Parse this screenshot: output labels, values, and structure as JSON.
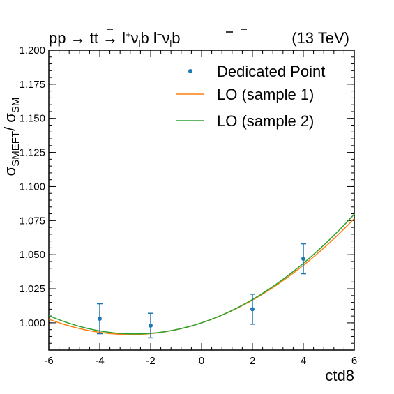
{
  "chart_data": {
    "type": "line",
    "title_process": {
      "parts": [
        "pp → t",
        "t",
        " → l",
        "+",
        "ν",
        "l",
        "b  l",
        "−",
        "ν",
        "l",
        "b",
        ""
      ]
    },
    "title_energy": "(13 TeV)",
    "xlabel": "ctd8",
    "ylabel_parts": [
      "σ",
      "SMEFT",
      "/ σ",
      "SM"
    ],
    "xlim": [
      -6,
      6
    ],
    "ylim": [
      0.98,
      1.2
    ],
    "x_ticks": [
      -6,
      -4,
      -2,
      0,
      2,
      4,
      6
    ],
    "x_tick_labels": [
      "-6",
      "-4",
      "-2",
      "0",
      "2",
      "4",
      "6"
    ],
    "y_ticks": [
      1.0,
      1.025,
      1.05,
      1.075,
      1.1,
      1.125,
      1.15,
      1.175,
      1.2
    ],
    "y_tick_labels": [
      "1.000",
      "1.025",
      "1.050",
      "1.075",
      "1.100",
      "1.125",
      "1.150",
      "1.175",
      "1.200"
    ],
    "legend_position": "top-right",
    "series": [
      {
        "name": "Dedicated Point",
        "kind": "points",
        "color": "#1f77b4",
        "x": [
          -4,
          -2,
          2,
          4
        ],
        "y": [
          1.003,
          0.998,
          1.01,
          1.047
        ],
        "yerr": [
          0.011,
          0.009,
          0.011,
          0.011
        ]
      },
      {
        "name": "LO (sample 1)",
        "kind": "curve",
        "color": "#ff7f0e",
        "coeffs": [
          1.0,
          0.00615,
          0.0011
        ]
      },
      {
        "name": "LO (sample 2)",
        "kind": "curve",
        "color": "#2ca02c",
        "coeffs": [
          1.0,
          0.0062,
          0.00118
        ]
      }
    ]
  }
}
